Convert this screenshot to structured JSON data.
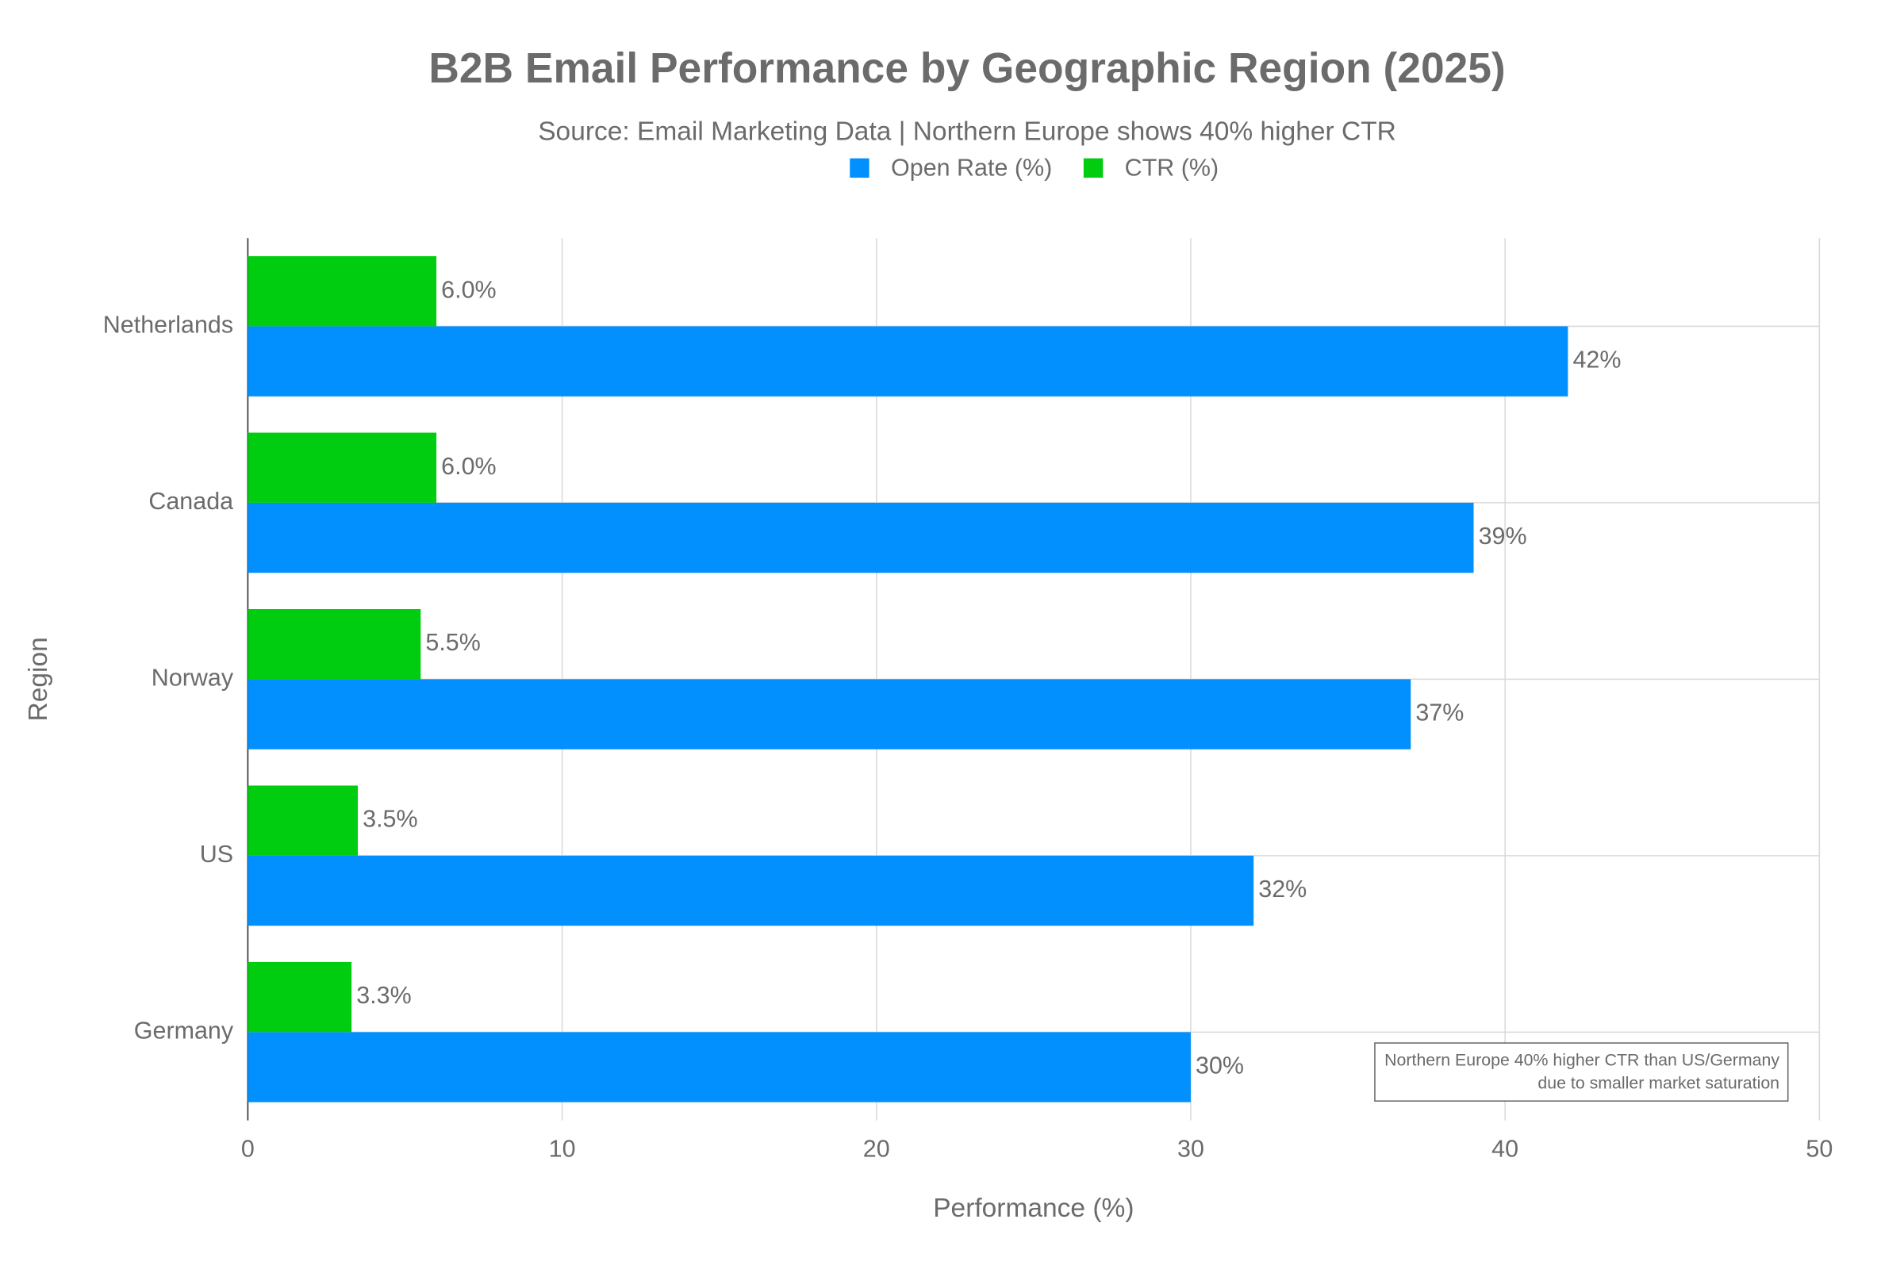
{
  "chart_data": {
    "type": "hbar",
    "title": "B2B Email Performance by Geographic Region (2025)",
    "subtitle": "Source: Email Marketing Data | Northern Europe shows 40% higher CTR",
    "x_label": "Performance (%)",
    "y_label": "Region",
    "categories": [
      "Germany",
      "US",
      "Norway",
      "Canada",
      "Netherlands"
    ],
    "series": [
      {
        "name": "Open Rate (%)",
        "color": "#0390ff",
        "values": [
          30,
          32,
          37,
          39,
          42
        ],
        "value_labels": [
          "30%",
          "32%",
          "37%",
          "39%",
          "42%"
        ]
      },
      {
        "name": "CTR (%)",
        "color": "#00cc10",
        "values": [
          3.3,
          3.5,
          5.5,
          6.0,
          6.0
        ],
        "value_labels": [
          "3.3%",
          "3.5%",
          "5.5%",
          "6.0%",
          "6.0%"
        ]
      }
    ],
    "xlim": [
      0,
      50
    ],
    "xticks": [
      0,
      10,
      20,
      30,
      40,
      50
    ],
    "grid": true,
    "annotation": [
      "Northern Europe 40% higher CTR than US/Germany",
      "due to smaller market saturation"
    ]
  }
}
